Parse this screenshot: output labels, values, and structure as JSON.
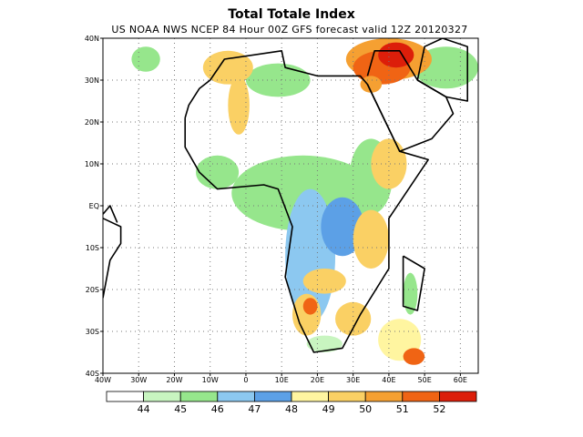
{
  "title": "Total Totale Index",
  "subtitle": "US NOAA NWS NCEP 84 Hour 00Z GFS forecast valid 12Z 20120327",
  "map": {
    "lon_range": [
      -40,
      65
    ],
    "lat_range": [
      -40,
      40
    ],
    "lat_ticks": [
      {
        "value": 40,
        "label": "40N"
      },
      {
        "value": 30,
        "label": "30N"
      },
      {
        "value": 20,
        "label": "20N"
      },
      {
        "value": 10,
        "label": "10N"
      },
      {
        "value": 0,
        "label": "EQ"
      },
      {
        "value": -10,
        "label": "10S"
      },
      {
        "value": -20,
        "label": "20S"
      },
      {
        "value": -30,
        "label": "30S"
      },
      {
        "value": -40,
        "label": "40S"
      }
    ],
    "lon_ticks": [
      {
        "value": -40,
        "label": "40W"
      },
      {
        "value": -30,
        "label": "30W"
      },
      {
        "value": -20,
        "label": "20W"
      },
      {
        "value": -10,
        "label": "10W"
      },
      {
        "value": 0,
        "label": "0"
      },
      {
        "value": 10,
        "label": "10E"
      },
      {
        "value": 20,
        "label": "20E"
      },
      {
        "value": 30,
        "label": "30E"
      },
      {
        "value": 40,
        "label": "40E"
      },
      {
        "value": 50,
        "label": "50E"
      },
      {
        "value": 60,
        "label": "60E"
      }
    ],
    "grid": "dotted"
  },
  "colorbar": {
    "colors": [
      "#ffffff",
      "#c8f5c0",
      "#96e68c",
      "#8cc8f0",
      "#5ca0e6",
      "#fff5a0",
      "#fad064",
      "#f5a032",
      "#f06414",
      "#dc1e0a"
    ],
    "labels": [
      "44",
      "45",
      "46",
      "47",
      "48",
      "49",
      "50",
      "51",
      "52"
    ]
  },
  "fields": [
    {
      "lon": 16,
      "lat": 3,
      "rx": 20,
      "ry": 9,
      "level": 2
    },
    {
      "lon": 18,
      "lat": -12,
      "rx": 7,
      "ry": 16,
      "level": 3
    },
    {
      "lon": -8,
      "lat": 8,
      "rx": 6,
      "ry": 4,
      "level": 2
    },
    {
      "lon": 35,
      "lat": 7,
      "rx": 6,
      "ry": 9,
      "level": 2
    },
    {
      "lon": 27,
      "lat": -5,
      "rx": 6,
      "ry": 7,
      "level": 4
    },
    {
      "lon": 9,
      "lat": 30,
      "rx": 9,
      "ry": 4,
      "level": 2
    },
    {
      "lon": 56,
      "lat": 33,
      "rx": 9,
      "ry": 5,
      "level": 2
    },
    {
      "lon": -28,
      "lat": 35,
      "rx": 4,
      "ry": 3,
      "level": 2
    },
    {
      "lon": 22,
      "lat": -33,
      "rx": 5,
      "ry": 2,
      "level": 1
    },
    {
      "lon": 46,
      "lat": -21,
      "rx": 2,
      "ry": 5,
      "level": 2
    },
    {
      "lon": -5,
      "lat": 33,
      "rx": 7,
      "ry": 4,
      "level": 6
    },
    {
      "lon": -2,
      "lat": 24,
      "rx": 3,
      "ry": 7,
      "level": 6
    },
    {
      "lon": 40,
      "lat": 10,
      "rx": 5,
      "ry": 6,
      "level": 6
    },
    {
      "lon": 35,
      "lat": -8,
      "rx": 5,
      "ry": 7,
      "level": 6
    },
    {
      "lon": 22,
      "lat": -18,
      "rx": 6,
      "ry": 3,
      "level": 6
    },
    {
      "lon": 17,
      "lat": -26,
      "rx": 4,
      "ry": 5,
      "level": 6
    },
    {
      "lon": 30,
      "lat": -27,
      "rx": 5,
      "ry": 4,
      "level": 6
    },
    {
      "lon": 43,
      "lat": -32,
      "rx": 6,
      "ry": 5,
      "level": 5
    },
    {
      "lon": 40,
      "lat": 35,
      "rx": 12,
      "ry": 5,
      "level": 7
    },
    {
      "lon": 38,
      "lat": 33,
      "rx": 8,
      "ry": 4,
      "level": 8
    },
    {
      "lon": 42,
      "lat": 36,
      "rx": 5,
      "ry": 3,
      "level": 9
    },
    {
      "lon": 47,
      "lat": -36,
      "rx": 3,
      "ry": 2,
      "level": 8
    },
    {
      "lon": 18,
      "lat": -24,
      "rx": 2,
      "ry": 2,
      "level": 8
    },
    {
      "lon": 35,
      "lat": 29,
      "rx": 3,
      "ry": 2,
      "level": 7
    }
  ],
  "boundaries": [
    [
      [
        -17,
        21
      ],
      [
        -16,
        24
      ],
      [
        -13,
        28
      ],
      [
        -10,
        30
      ],
      [
        -6,
        35
      ],
      [
        10,
        37
      ],
      [
        11,
        33
      ],
      [
        20,
        31
      ],
      [
        32,
        31
      ],
      [
        34,
        29
      ],
      [
        43,
        13
      ],
      [
        51,
        11
      ],
      [
        40,
        -3
      ],
      [
        40,
        -15
      ],
      [
        32,
        -26
      ],
      [
        27,
        -34
      ],
      [
        19,
        -35
      ],
      [
        15,
        -28
      ],
      [
        11,
        -17
      ],
      [
        13,
        -5
      ],
      [
        9,
        4
      ],
      [
        5,
        5
      ],
      [
        -8,
        4
      ],
      [
        -13,
        8
      ],
      [
        -17,
        14
      ],
      [
        -17,
        21
      ]
    ],
    [
      [
        44,
        -12
      ],
      [
        50,
        -15
      ],
      [
        48,
        -25
      ],
      [
        44,
        -24
      ],
      [
        44,
        -12
      ]
    ],
    [
      [
        34,
        31
      ],
      [
        36,
        37
      ],
      [
        43,
        37
      ],
      [
        48,
        30
      ],
      [
        56,
        26
      ],
      [
        58,
        22
      ],
      [
        52,
        16
      ],
      [
        43,
        13
      ],
      [
        34,
        29
      ]
    ],
    [
      [
        48,
        30
      ],
      [
        56,
        26
      ],
      [
        62,
        25
      ],
      [
        62,
        38
      ],
      [
        55,
        40
      ],
      [
        50,
        38
      ],
      [
        48,
        30
      ]
    ],
    [
      [
        -40,
        -3
      ],
      [
        -35,
        -5
      ],
      [
        -35,
        -9
      ],
      [
        -38,
        -13
      ],
      [
        -40,
        -22
      ]
    ],
    [
      [
        -40,
        -2
      ],
      [
        -38,
        0
      ],
      [
        -36,
        -4
      ]
    ]
  ]
}
